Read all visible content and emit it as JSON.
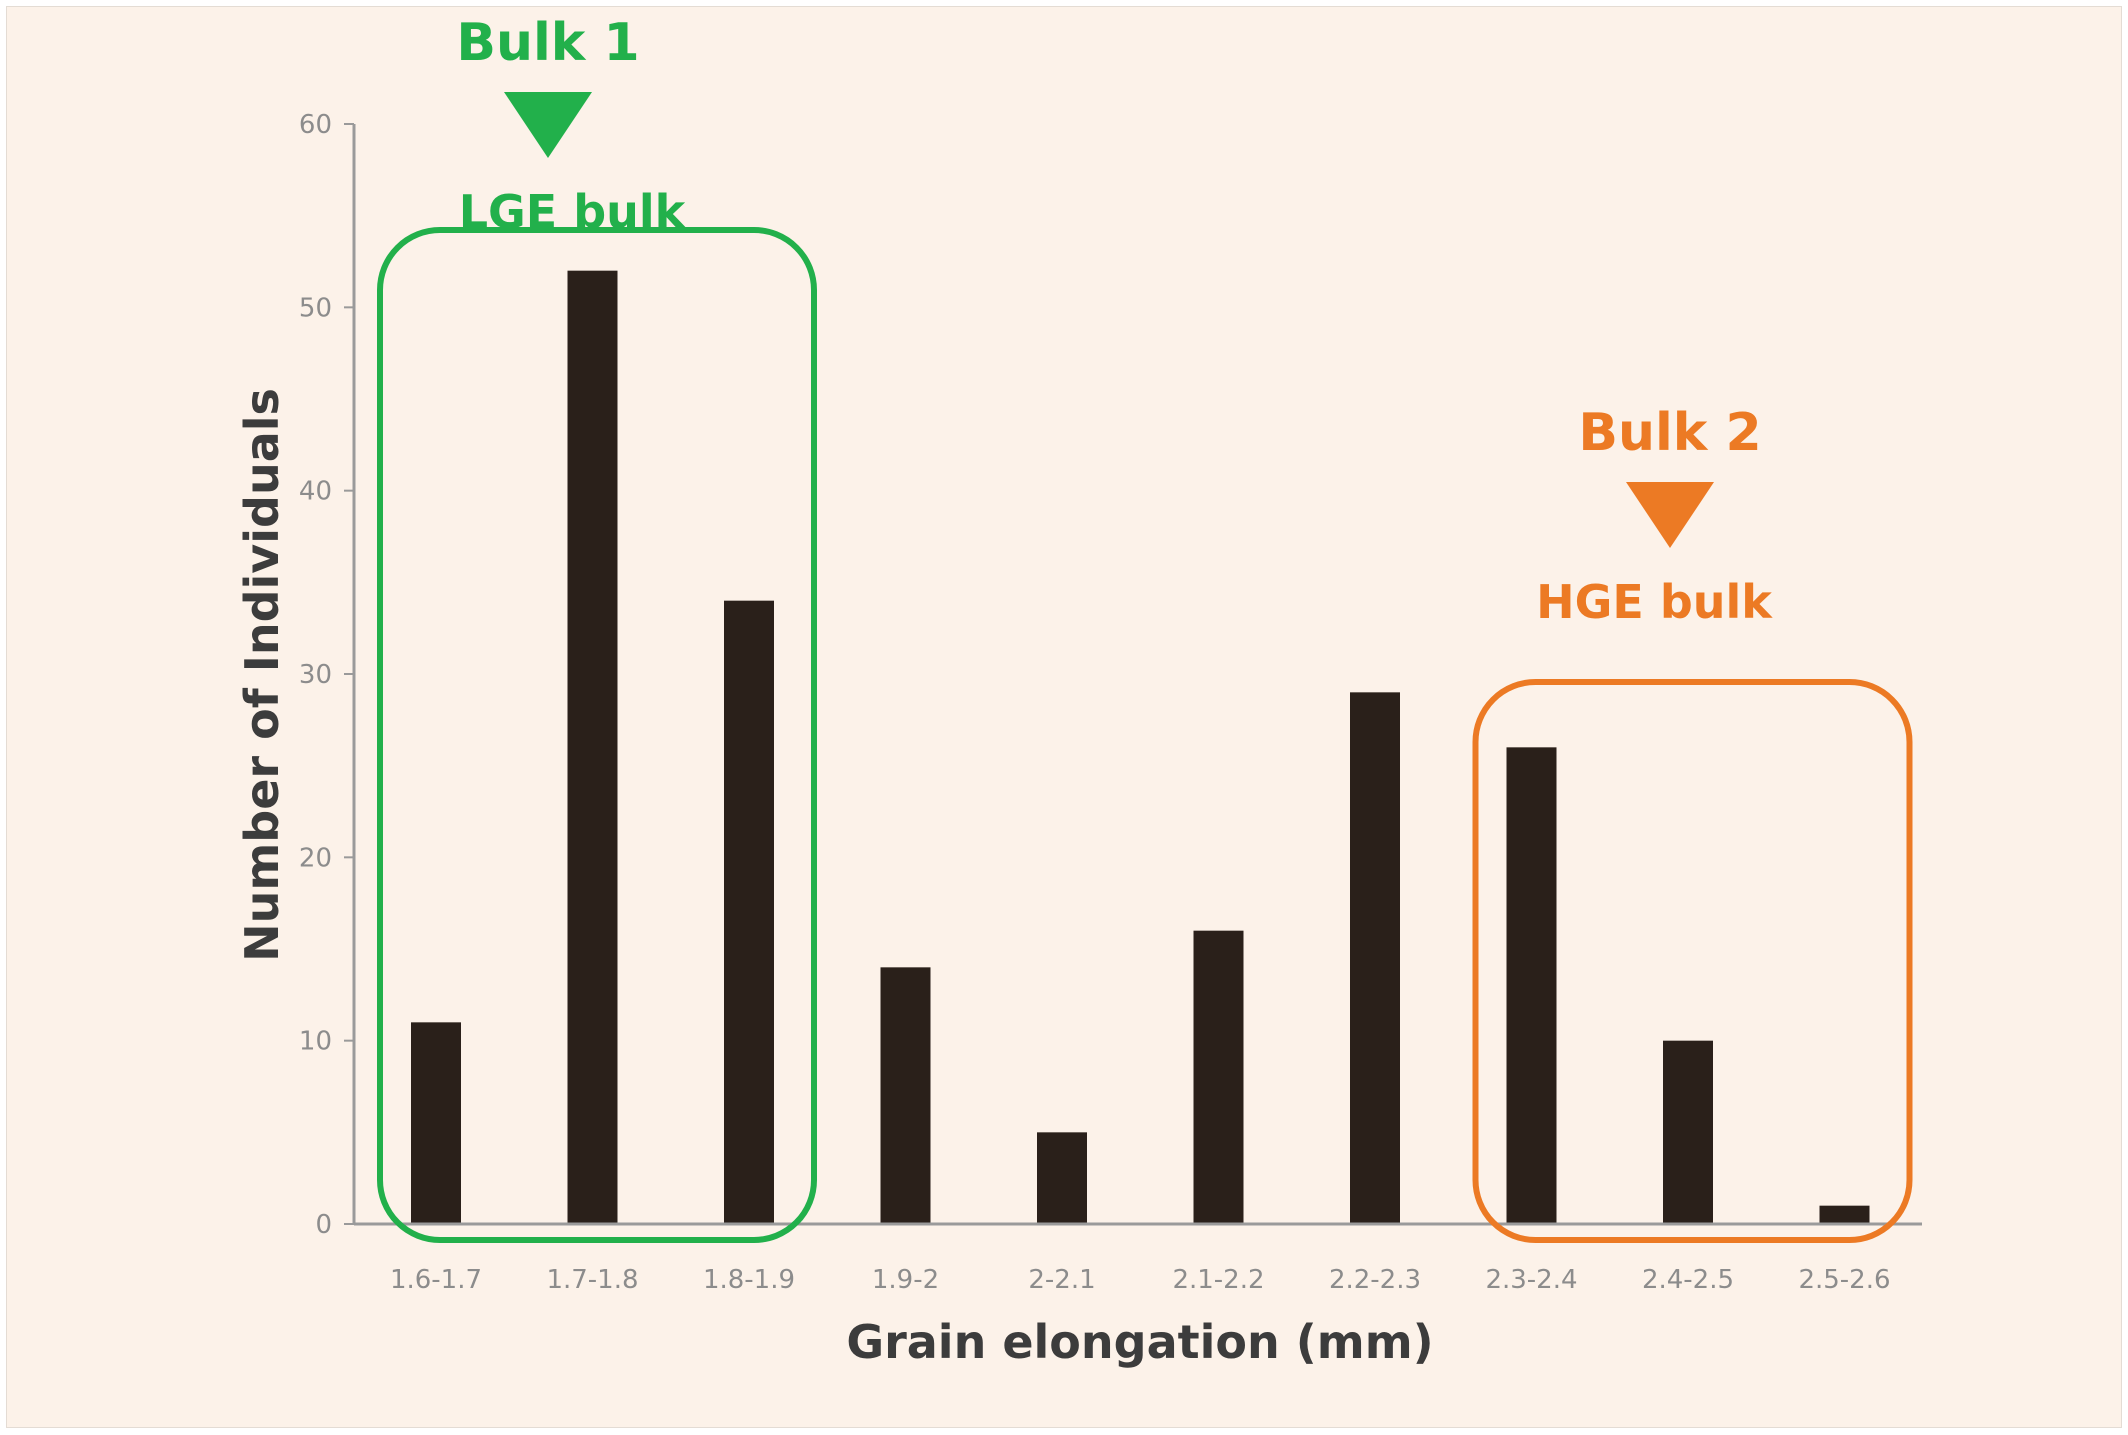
{
  "chart_data": {
    "type": "bar",
    "title": "",
    "xlabel": "Grain elongation (mm)",
    "ylabel": "Number of Individuals",
    "ylim": [
      0,
      60
    ],
    "yticks": [
      "0",
      "10",
      "20",
      "30",
      "40",
      "50",
      "60"
    ],
    "categories": [
      "1.6-1.7",
      "1.7-1.8",
      "1.8-1.9",
      "1.9-2",
      "2-2.1",
      "2.1-2.2",
      "2.2-2.3",
      "2.3-2.4",
      "2.4-2.5",
      "2.5-2.6"
    ],
    "values": [
      11,
      52,
      34,
      14,
      5,
      16,
      29,
      26,
      10,
      1
    ],
    "grid": false,
    "bar_color": "#2a201a",
    "annotations": [
      {
        "label": "Bulk 1",
        "sublabel": "LGE bulk",
        "color": "#22b04b",
        "first_category": 0,
        "last_category": 2
      },
      {
        "label": "Bulk 2",
        "sublabel": "HGE bulk",
        "color": "#ec7a24",
        "first_category": 7,
        "last_category": 9
      }
    ]
  }
}
